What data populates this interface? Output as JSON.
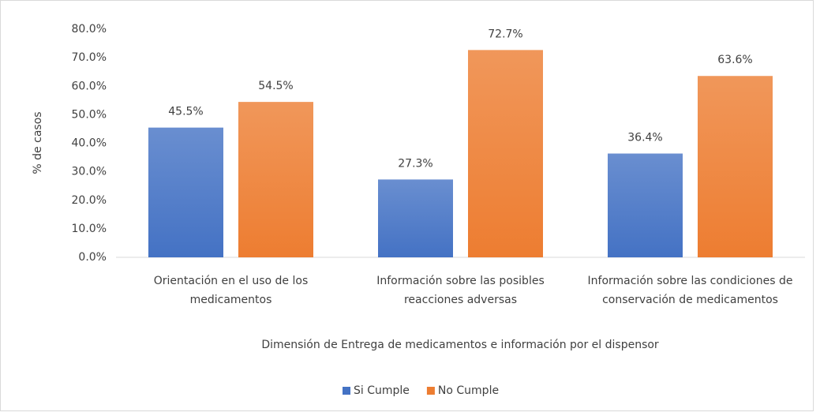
{
  "chart_data": {
    "type": "bar",
    "categories": [
      "Orientación en el uso de los medicamentos",
      "Información sobre las posibles reacciones adversas",
      "Información sobre las condiciones de conservación de medicamentos"
    ],
    "series": [
      {
        "name": "Si Cumple",
        "color": "#4472c4",
        "values": [
          45.5,
          27.3,
          36.4
        ],
        "value_labels": [
          "45.5%",
          "27.3%",
          "36.4%"
        ]
      },
      {
        "name": "No Cumple",
        "color": "#ed7d31",
        "values": [
          54.5,
          72.7,
          63.6
        ],
        "value_labels": [
          "54.5%",
          "72.7%",
          "63.6%"
        ]
      }
    ],
    "y_label": "% de casos",
    "x_label": "Dimensión de Entrega de medicamentos e información por el dispensor",
    "ylim": [
      0,
      80
    ],
    "yticks": [
      {
        "value": 0,
        "label": "0.0%"
      },
      {
        "value": 10,
        "label": "10.0%"
      },
      {
        "value": 20,
        "label": "20.0%"
      },
      {
        "value": 30,
        "label": "30.0%"
      },
      {
        "value": 40,
        "label": "40.0%"
      },
      {
        "value": 50,
        "label": "50.0%"
      },
      {
        "value": 60,
        "label": "60.0%"
      },
      {
        "value": 70,
        "label": "70.0%"
      },
      {
        "value": 80,
        "label": "80.0%"
      }
    ],
    "grid": false,
    "legend": "bottom"
  }
}
